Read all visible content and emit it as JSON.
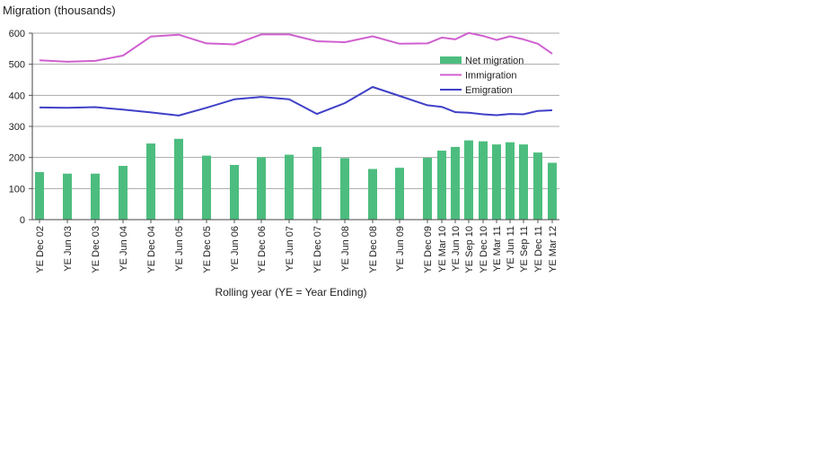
{
  "chart_data": {
    "type": "bar",
    "title": "",
    "ylabel": "Migration (thousands)",
    "xlabel": "Rolling year (YE = Year Ending)",
    "ylim": [
      0,
      600
    ],
    "yticks": [
      0,
      100,
      200,
      300,
      400,
      500,
      600
    ],
    "grid": true,
    "legend_position": "top-right",
    "categories": [
      "YE Dec 02",
      "YE Jun 03",
      "YE Dec 03",
      "YE Jun 04",
      "YE Dec 04",
      "YE Jun 05",
      "YE Dec 05",
      "YE Jun 06",
      "YE Dec 06",
      "YE Jun 07",
      "YE Dec 07",
      "YE Jun 08",
      "YE Dec 08",
      "YE Jun 09",
      "YE Dec 09",
      "YE Mar 10",
      "YE Jun 10",
      "YE Sep 10",
      "YE Dec 10",
      "YE Mar 11",
      "YE Jun 11",
      "YE Sep 11",
      "YE Dec 11",
      "YE Mar 12"
    ],
    "series": [
      {
        "name": "Net migration",
        "type": "bar",
        "color": "#4dbd7f",
        "values": [
          153,
          148,
          148,
          173,
          245,
          260,
          206,
          176,
          201,
          209,
          234,
          198,
          163,
          167,
          199,
          222,
          234,
          255,
          252,
          242,
          249,
          242,
          216,
          183
        ]
      },
      {
        "name": "Immigration",
        "type": "line",
        "color": "#d060d0",
        "values": [
          513,
          508,
          511,
          528,
          589,
          595,
          567,
          564,
          596,
          596,
          574,
          571,
          590,
          566,
          567,
          586,
          580,
          601,
          591,
          578,
          590,
          580,
          566,
          534
        ]
      },
      {
        "name": "Emigration",
        "type": "line",
        "color": "#4040c8",
        "values": [
          361,
          360,
          362,
          354,
          345,
          335,
          360,
          387,
          395,
          387,
          340,
          375,
          427,
          398,
          368,
          363,
          346,
          344,
          339,
          336,
          340,
          339,
          350,
          352
        ]
      }
    ]
  }
}
